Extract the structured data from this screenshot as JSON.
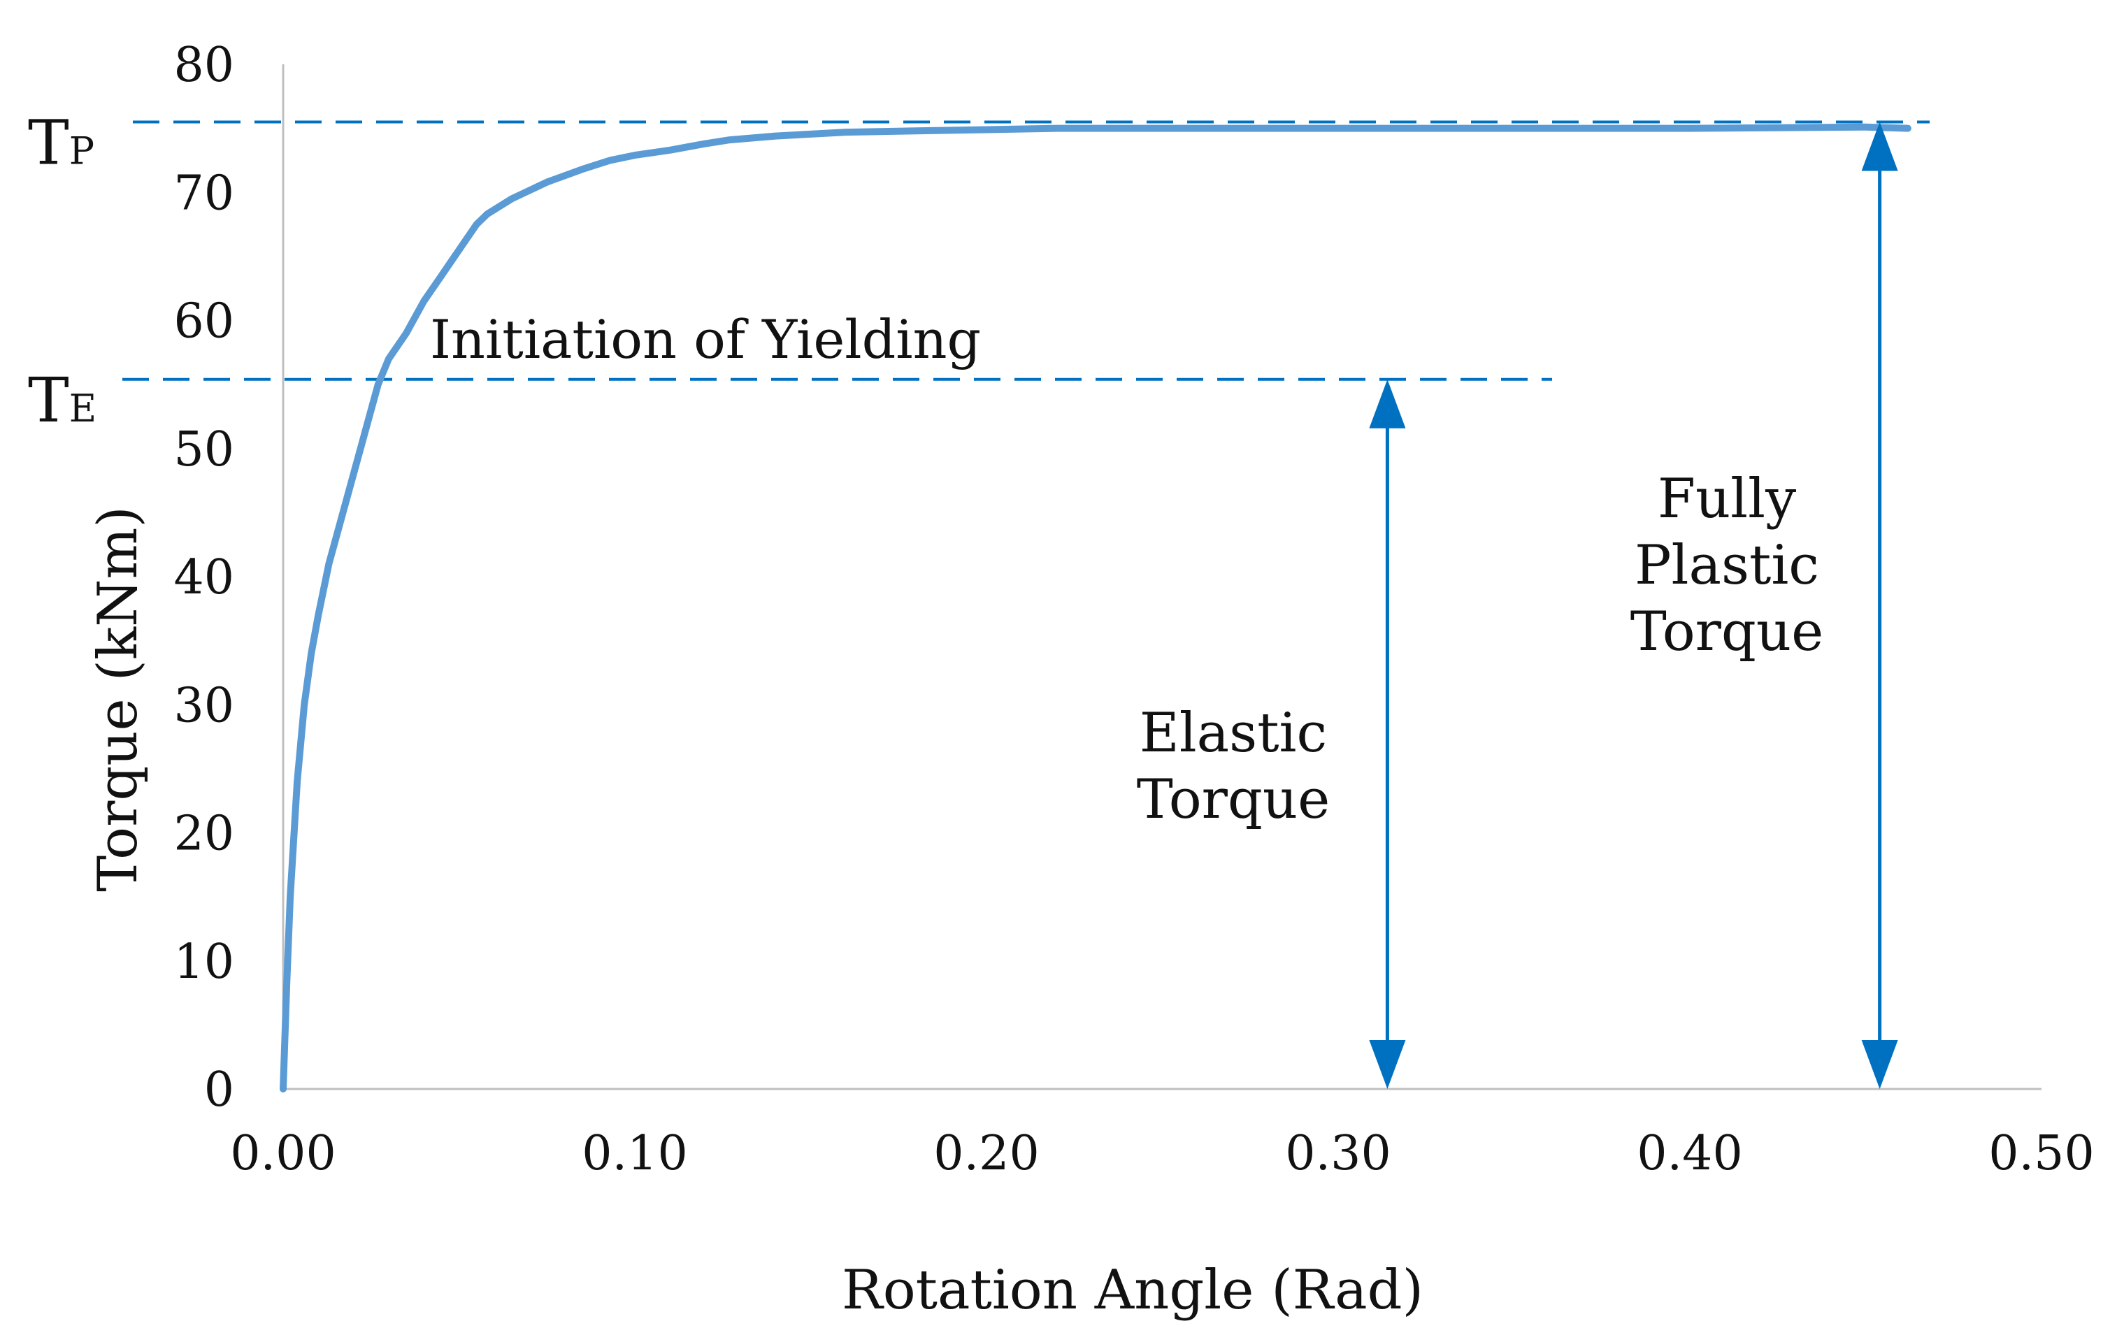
{
  "chart_data": {
    "type": "line",
    "title": "",
    "xlabel": "Rotation Angle (Rad)",
    "ylabel": "Torque (kNm)",
    "xlim": [
      0,
      0.5
    ],
    "ylim": [
      0,
      80
    ],
    "x_ticks": [
      "0.00",
      "0.10",
      "0.20",
      "0.30",
      "0.40",
      "0.50"
    ],
    "x_tick_values": [
      0,
      0.1,
      0.2,
      0.3,
      0.4,
      0.5
    ],
    "y_ticks": [
      "0",
      "10",
      "20",
      "30",
      "40",
      "50",
      "60",
      "70",
      "80"
    ],
    "y_tick_values": [
      0,
      10,
      20,
      30,
      40,
      50,
      60,
      70,
      80
    ],
    "grid": false,
    "legend": "none",
    "colors": {
      "curve": "#5B9BD5",
      "annotation": "#0070C0",
      "axis": "#BFBFBF"
    },
    "series": [
      {
        "x": [
          0,
          0.001,
          0.002,
          0.004,
          0.006,
          0.008,
          0.01,
          0.013,
          0.016,
          0.02,
          0.024,
          0.027,
          0.03,
          0.035,
          0.04,
          0.045,
          0.05,
          0.055,
          0.058,
          0.065,
          0.075,
          0.085,
          0.093,
          0.1,
          0.11,
          0.12,
          0.127,
          0.14,
          0.16,
          0.18,
          0.2,
          0.22,
          0.25,
          0.3,
          0.35,
          0.4,
          0.45,
          0.462
        ],
        "y": [
          0,
          8,
          15,
          24,
          30,
          34,
          37,
          41,
          44,
          48,
          52,
          55,
          57,
          59,
          61.5,
          63.5,
          65.5,
          67.5,
          68.3,
          69.5,
          70.8,
          71.8,
          72.5,
          72.9,
          73.3,
          73.8,
          74.1,
          74.4,
          74.7,
          74.8,
          74.9,
          75,
          75,
          75,
          75,
          75,
          75.1,
          75
        ]
      }
    ],
    "reference_lines": [
      {
        "label": "T",
        "subscript": "P",
        "value": 75.5
      },
      {
        "label": "T",
        "subscript": "E",
        "value": 55.4
      }
    ],
    "arrows": [
      {
        "x": 0.314,
        "from": 0,
        "to": 55.4,
        "label_lines": [
          "Elastic",
          "Torque"
        ]
      },
      {
        "x": 0.454,
        "from": 0,
        "to": 75.5,
        "label_lines": [
          "Fully",
          "Plastic",
          "Torque"
        ]
      }
    ],
    "annotations": [
      {
        "text": "Initiation of Yielding"
      }
    ]
  }
}
